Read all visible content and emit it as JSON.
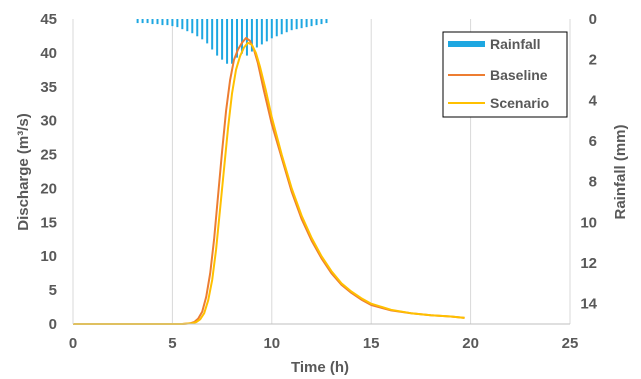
{
  "chart_data": {
    "type": "line",
    "title": "",
    "xlabel": "Time (h)",
    "ylabel": "Discharge (m³/s)",
    "y2label": "Rainfall (mm)",
    "xlim": [
      0,
      25
    ],
    "ylim": [
      0,
      45
    ],
    "y2lim": [
      0,
      15
    ],
    "y2_inverted": true,
    "x_ticks": [
      0,
      5,
      10,
      15,
      20,
      25
    ],
    "y_ticks": [
      0,
      5,
      10,
      15,
      20,
      25,
      30,
      35,
      40,
      45
    ],
    "y2_ticks": [
      0,
      2,
      4,
      6,
      8,
      10,
      12,
      14
    ],
    "grid": "vertical",
    "legend": "top-right",
    "series": [
      {
        "name": "Rainfall",
        "kind": "bar",
        "axis": "y2",
        "color": "#1ea7e1",
        "x": [
          3.25,
          3.5,
          3.75,
          4.0,
          4.25,
          4.5,
          4.75,
          5.0,
          5.25,
          5.5,
          5.75,
          6.0,
          6.25,
          6.5,
          6.75,
          7.0,
          7.25,
          7.5,
          7.75,
          8.0,
          8.25,
          8.5,
          8.75,
          9.0,
          9.25,
          9.5,
          9.75,
          10.0,
          10.25,
          10.5,
          10.75,
          11.0,
          11.25,
          11.5,
          11.75,
          12.0,
          12.25,
          12.5,
          12.75
        ],
        "values": [
          0.2,
          0.2,
          0.2,
          0.25,
          0.25,
          0.3,
          0.3,
          0.35,
          0.4,
          0.5,
          0.6,
          0.7,
          0.85,
          1.0,
          1.2,
          1.5,
          1.8,
          2.0,
          2.2,
          2.2,
          1.9,
          1.7,
          1.8,
          1.6,
          1.4,
          1.25,
          1.1,
          0.95,
          0.85,
          0.75,
          0.65,
          0.55,
          0.5,
          0.45,
          0.4,
          0.35,
          0.3,
          0.25,
          0.2
        ]
      },
      {
        "name": "Baseline",
        "kind": "line",
        "axis": "y",
        "color": "#ed7d31",
        "x": [
          0,
          5.5,
          5.9,
          6.1,
          6.3,
          6.5,
          6.7,
          6.9,
          7.1,
          7.3,
          7.5,
          7.7,
          7.9,
          8.1,
          8.3,
          8.5,
          8.7,
          8.9,
          9.1,
          9.3,
          9.6,
          10.0,
          10.5,
          11.0,
          11.5,
          12.0,
          12.5,
          13.0,
          13.5,
          14.0,
          14.5,
          15.0,
          16.0,
          17.0,
          18.0,
          19.0,
          19.7
        ],
        "values": [
          0,
          0,
          0.1,
          0.3,
          0.8,
          1.8,
          4,
          7.5,
          12.5,
          19,
          25.5,
          31.5,
          36,
          39,
          40.5,
          41.5,
          42.2,
          41.8,
          40.5,
          38.5,
          34.5,
          29.5,
          24.5,
          19.5,
          15.5,
          12.3,
          9.7,
          7.5,
          5.8,
          4.6,
          3.6,
          2.8,
          2,
          1.6,
          1.3,
          1.1,
          0.9
        ]
      },
      {
        "name": "Scenario",
        "kind": "line",
        "axis": "y",
        "color": "#ffc000",
        "x": [
          0,
          5.5,
          6.0,
          6.2,
          6.4,
          6.6,
          6.8,
          7.0,
          7.2,
          7.4,
          7.6,
          7.8,
          8.0,
          8.2,
          8.4,
          8.6,
          8.8,
          9.0,
          9.2,
          9.4,
          9.7,
          10.0,
          10.5,
          11.0,
          11.5,
          12.0,
          12.5,
          13.0,
          13.5,
          14.0,
          14.5,
          15.0,
          16.0,
          17.0,
          18.0,
          19.0,
          19.7
        ],
        "values": [
          0,
          0,
          0.1,
          0.3,
          0.7,
          1.6,
          3.5,
          6.5,
          11,
          17,
          23,
          29,
          34,
          37.5,
          39.5,
          40.8,
          41.5,
          41.2,
          40,
          38,
          34.5,
          30.5,
          25,
          20,
          16,
          12.7,
          10,
          7.8,
          6,
          4.8,
          3.8,
          3,
          2.1,
          1.6,
          1.3,
          1.1,
          0.9
        ]
      }
    ]
  }
}
